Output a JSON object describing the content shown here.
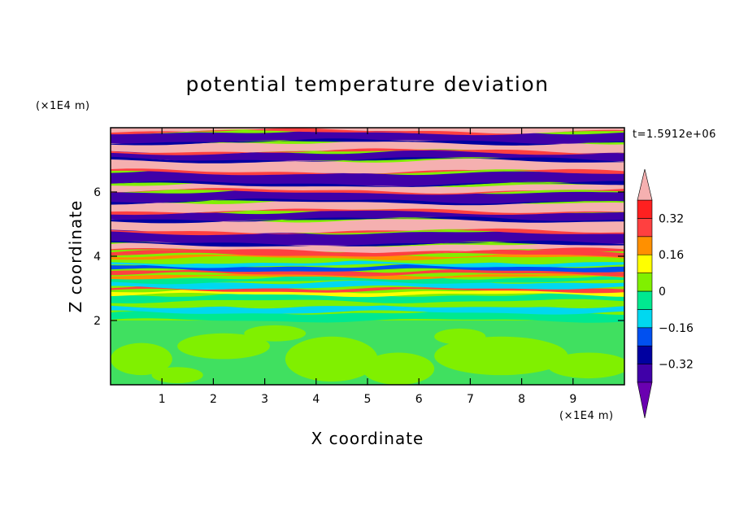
{
  "chart_data": {
    "type": "heatmap",
    "title": "potential temperature deviation",
    "xlabel": "X coordinate",
    "ylabel": "Z coordinate",
    "x_unit": "(×1E4 m)",
    "y_unit": "(×1E4 m)",
    "time_label": "t=1.5912e+06",
    "xlim": [
      0,
      10
    ],
    "ylim": [
      0,
      8
    ],
    "x_ticks": [
      "1",
      "2",
      "3",
      "4",
      "5",
      "6",
      "7",
      "8",
      "9"
    ],
    "y_ticks": [
      "2",
      "4",
      "6"
    ],
    "colorbar": {
      "levels": [
        -0.4,
        -0.32,
        -0.24,
        -0.16,
        -0.08,
        0,
        0.08,
        0.16,
        0.24,
        0.32,
        0.4
      ],
      "labels": [
        "0.32",
        "0.16",
        "0",
        "−0.16",
        "−0.32"
      ],
      "colors": [
        "#6a00b0",
        "#4000a8",
        "#0000a0",
        "#0050f0",
        "#00d8f0",
        "#00e890",
        "#80f000",
        "#ffff00",
        "#ff9000",
        "#ff4040",
        "#ff2020",
        "#f5b0b0"
      ]
    },
    "grid": false,
    "legend": "right"
  }
}
